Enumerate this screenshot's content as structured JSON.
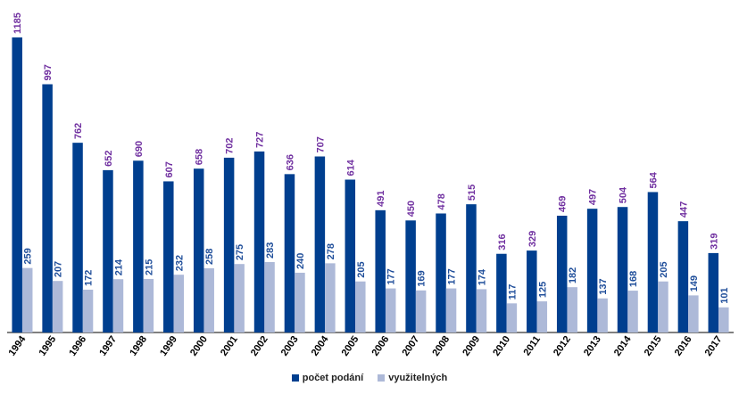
{
  "chart_data": {
    "type": "bar",
    "categories": [
      "1994",
      "1995",
      "1996",
      "1997",
      "1998",
      "1999",
      "2000",
      "2001",
      "2002",
      "2003",
      "2004",
      "2005",
      "2006",
      "2007",
      "2008",
      "2009",
      "2010",
      "2011",
      "2012",
      "2013",
      "2014",
      "2015",
      "2016",
      "2017"
    ],
    "series": [
      {
        "name": "počet podání",
        "color": "#003f8f",
        "label_color": "#7030a0",
        "values": [
          1185,
          997,
          762,
          652,
          690,
          607,
          658,
          702,
          727,
          636,
          707,
          614,
          491,
          450,
          478,
          515,
          316,
          329,
          469,
          497,
          504,
          564,
          447,
          319
        ]
      },
      {
        "name": "využitelných",
        "color": "#adb9d8",
        "label_color": "#1f4e9a",
        "values": [
          259,
          207,
          172,
          214,
          215,
          232,
          258,
          275,
          283,
          240,
          278,
          205,
          177,
          169,
          177,
          174,
          117,
          125,
          182,
          137,
          168,
          205,
          149,
          101
        ]
      }
    ],
    "ylim": [
      0,
      1185
    ],
    "grid": false,
    "legend_position": "bottom"
  }
}
